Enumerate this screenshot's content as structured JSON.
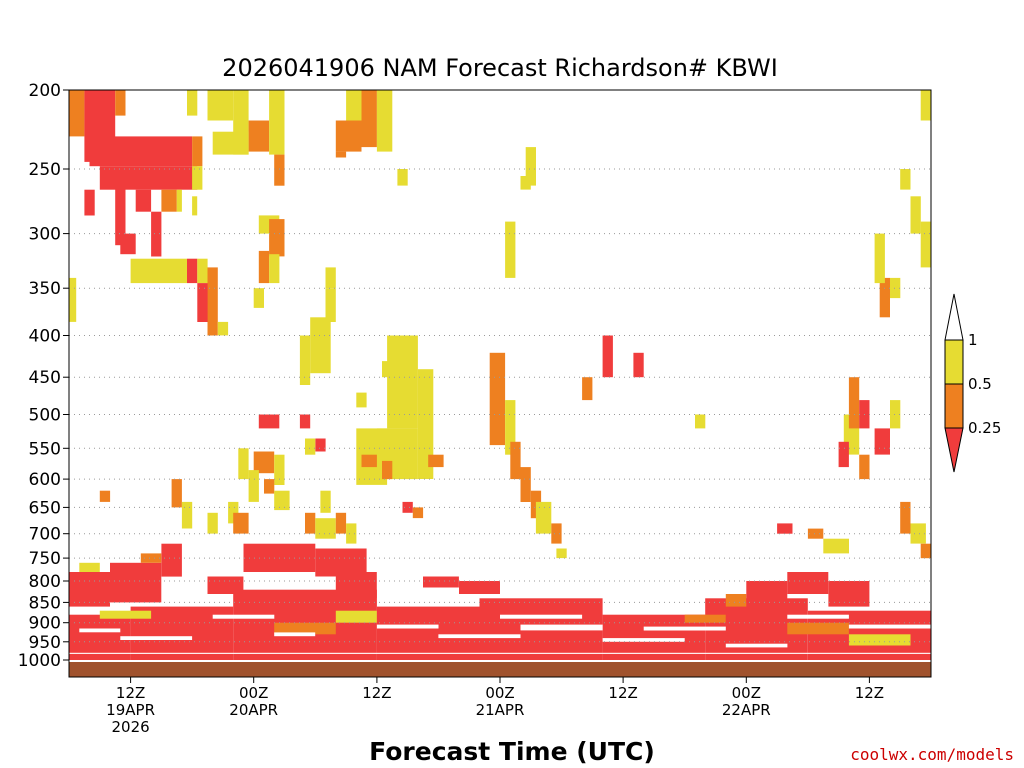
{
  "chart_data": {
    "type": "heatmap",
    "title": "2026041906 NAM Forecast Richardson# KBWI",
    "xlabel": "Forecast Time (UTC)",
    "credit": "coolwx.com/models",
    "y_scale": "log",
    "y_reversed": true,
    "ylim": [
      1000,
      200
    ],
    "grid": "horizontal dotted",
    "y_ticks": [
      {
        "value": 200,
        "label": "200"
      },
      {
        "value": 250,
        "label": "250"
      },
      {
        "value": 300,
        "label": "300"
      },
      {
        "value": 350,
        "label": "350"
      },
      {
        "value": 400,
        "label": "400"
      },
      {
        "value": 450,
        "label": "450"
      },
      {
        "value": 500,
        "label": "500"
      },
      {
        "value": 550,
        "label": "550"
      },
      {
        "value": 600,
        "label": "600"
      },
      {
        "value": 650,
        "label": "650"
      },
      {
        "value": 700,
        "label": "700"
      },
      {
        "value": 750,
        "label": "750"
      },
      {
        "value": 800,
        "label": "800"
      },
      {
        "value": 850,
        "label": "850"
      },
      {
        "value": 900,
        "label": "900"
      },
      {
        "value": 950,
        "label": "950"
      },
      {
        "value": 1000,
        "label": "1000"
      }
    ],
    "xlim": [
      0,
      84
    ],
    "x_ticks": [
      {
        "value": 6,
        "lines": [
          "12Z",
          "19APR",
          "2026"
        ]
      },
      {
        "value": 18,
        "lines": [
          "00Z",
          "20APR"
        ]
      },
      {
        "value": 30,
        "lines": [
          "12Z"
        ]
      },
      {
        "value": 42,
        "lines": [
          "00Z",
          "21APR"
        ]
      },
      {
        "value": 54,
        "lines": [
          "12Z"
        ]
      },
      {
        "value": 66,
        "lines": [
          "00Z",
          "22APR"
        ]
      },
      {
        "value": 78,
        "lines": [
          "12Z"
        ]
      }
    ],
    "colorbar": {
      "bins": [
        {
          "label": "< 0.25",
          "color": "#f03c3c"
        },
        {
          "label": "0.25 - 0.5",
          "color": "#ee8020"
        },
        {
          "label": "0.5 - 1",
          "color": "#e6dc32"
        },
        {
          "label": "> 1",
          "color": "#ffffff"
        }
      ],
      "tick_labels": [
        "1",
        "0.5",
        "0.25"
      ]
    },
    "ground_color": "#a0522d",
    "cells": [
      {
        "t0": 0,
        "t1": 1.5,
        "p0": 200,
        "p1": 228,
        "v": "orange"
      },
      {
        "t0": 1.5,
        "t1": 4.5,
        "p0": 200,
        "p1": 245,
        "v": "red"
      },
      {
        "t0": 4.5,
        "t1": 5.5,
        "p0": 200,
        "p1": 215,
        "v": "orange"
      },
      {
        "t0": 2,
        "t1": 12,
        "p0": 228,
        "p1": 248,
        "v": "red"
      },
      {
        "t0": 3,
        "t1": 12.5,
        "p0": 248,
        "p1": 265,
        "v": "red"
      },
      {
        "t0": 12,
        "t1": 13,
        "p0": 228,
        "p1": 248,
        "v": "orange"
      },
      {
        "t0": 12,
        "t1": 13,
        "p0": 248,
        "p1": 265,
        "v": "yellow"
      },
      {
        "t0": 11.5,
        "t1": 12.5,
        "p0": 200,
        "p1": 215,
        "v": "yellow"
      },
      {
        "t0": 13.5,
        "t1": 16,
        "p0": 200,
        "p1": 218,
        "v": "yellow"
      },
      {
        "t0": 16,
        "t1": 17.5,
        "p0": 200,
        "p1": 240,
        "v": "yellow"
      },
      {
        "t0": 17.5,
        "t1": 19.5,
        "p0": 218,
        "p1": 238,
        "v": "orange"
      },
      {
        "t0": 19.5,
        "t1": 21,
        "p0": 200,
        "p1": 240,
        "v": "yellow"
      },
      {
        "t0": 14,
        "t1": 17.5,
        "p0": 225,
        "p1": 240,
        "v": "yellow"
      },
      {
        "t0": 20,
        "t1": 21,
        "p0": 240,
        "p1": 262,
        "v": "orange"
      },
      {
        "t0": 1.5,
        "t1": 2.5,
        "p0": 265,
        "p1": 285,
        "v": "red"
      },
      {
        "t0": 4.5,
        "t1": 5.5,
        "p0": 262,
        "p1": 310,
        "v": "red"
      },
      {
        "t0": 5,
        "t1": 6.5,
        "p0": 300,
        "p1": 318,
        "v": "red"
      },
      {
        "t0": 6.5,
        "t1": 8,
        "p0": 265,
        "p1": 282,
        "v": "red"
      },
      {
        "t0": 8,
        "t1": 9,
        "p0": 282,
        "p1": 320,
        "v": "red"
      },
      {
        "t0": 9,
        "t1": 10.5,
        "p0": 265,
        "p1": 282,
        "v": "orange"
      },
      {
        "t0": 10.5,
        "t1": 11,
        "p0": 265,
        "p1": 282,
        "v": "yellow"
      },
      {
        "t0": 12,
        "t1": 12.5,
        "p0": 270,
        "p1": 285,
        "v": "yellow"
      },
      {
        "t0": 18.5,
        "t1": 20.5,
        "p0": 285,
        "p1": 300,
        "v": "yellow"
      },
      {
        "t0": 19.5,
        "t1": 21,
        "p0": 288,
        "p1": 320,
        "v": "orange"
      },
      {
        "t0": 18.5,
        "t1": 19.5,
        "p0": 315,
        "p1": 345,
        "v": "orange"
      },
      {
        "t0": 19.5,
        "t1": 20.5,
        "p0": 318,
        "p1": 345,
        "v": "yellow"
      },
      {
        "t0": 6,
        "t1": 11.5,
        "p0": 322,
        "p1": 345,
        "v": "yellow"
      },
      {
        "t0": 11.5,
        "t1": 12.5,
        "p0": 322,
        "p1": 345,
        "v": "red"
      },
      {
        "t0": 12.5,
        "t1": 13.5,
        "p0": 322,
        "p1": 345,
        "v": "yellow"
      },
      {
        "t0": 13.5,
        "t1": 14.5,
        "p0": 330,
        "p1": 400,
        "v": "orange"
      },
      {
        "t0": 12.5,
        "t1": 13.5,
        "p0": 345,
        "p1": 385,
        "v": "red"
      },
      {
        "t0": 18,
        "t1": 19,
        "p0": 350,
        "p1": 370,
        "v": "yellow"
      },
      {
        "t0": 14.5,
        "t1": 15.5,
        "p0": 385,
        "p1": 400,
        "v": "yellow"
      },
      {
        "t0": 0,
        "t1": 0.7,
        "p0": 340,
        "p1": 385,
        "v": "yellow"
      },
      {
        "t0": 27,
        "t1": 28.5,
        "p0": 200,
        "p1": 218,
        "v": "yellow"
      },
      {
        "t0": 28.5,
        "t1": 30,
        "p0": 200,
        "p1": 235,
        "v": "orange"
      },
      {
        "t0": 30,
        "t1": 31.5,
        "p0": 200,
        "p1": 238,
        "v": "yellow"
      },
      {
        "t0": 26,
        "t1": 28.5,
        "p0": 218,
        "p1": 238,
        "v": "orange"
      },
      {
        "t0": 26,
        "t1": 27,
        "p0": 238,
        "p1": 242,
        "v": "orange"
      },
      {
        "t0": 32,
        "t1": 33,
        "p0": 250,
        "p1": 262,
        "v": "yellow"
      },
      {
        "t0": 25,
        "t1": 26,
        "p0": 330,
        "p1": 350,
        "v": "yellow"
      },
      {
        "t0": 23.5,
        "t1": 25.5,
        "p0": 380,
        "p1": 445,
        "v": "yellow"
      },
      {
        "t0": 22.5,
        "t1": 23.5,
        "p0": 400,
        "p1": 460,
        "v": "yellow"
      },
      {
        "t0": 25,
        "t1": 26,
        "p0": 350,
        "p1": 385,
        "v": "yellow"
      },
      {
        "t0": 31,
        "t1": 34,
        "p0": 400,
        "p1": 520,
        "v": "yellow"
      },
      {
        "t0": 34,
        "t1": 35.5,
        "p0": 440,
        "p1": 600,
        "v": "yellow"
      },
      {
        "t0": 28,
        "t1": 31,
        "p0": 520,
        "p1": 610,
        "v": "yellow"
      },
      {
        "t0": 30,
        "t1": 34,
        "p0": 520,
        "p1": 600,
        "v": "yellow"
      },
      {
        "t0": 28.5,
        "t1": 30,
        "p0": 560,
        "p1": 580,
        "v": "orange"
      },
      {
        "t0": 30.5,
        "t1": 31.5,
        "p0": 570,
        "p1": 600,
        "v": "orange"
      },
      {
        "t0": 35,
        "t1": 36.5,
        "p0": 560,
        "p1": 580,
        "v": "orange"
      },
      {
        "t0": 32.5,
        "t1": 33.5,
        "p0": 640,
        "p1": 660,
        "v": "red"
      },
      {
        "t0": 33.5,
        "t1": 34.5,
        "p0": 650,
        "p1": 670,
        "v": "orange"
      },
      {
        "t0": 28,
        "t1": 29,
        "p0": 470,
        "p1": 490,
        "v": "yellow"
      },
      {
        "t0": 30.5,
        "t1": 31.5,
        "p0": 430,
        "p1": 450,
        "v": "yellow"
      },
      {
        "t0": 18.5,
        "t1": 20.5,
        "p0": 500,
        "p1": 520,
        "v": "red"
      },
      {
        "t0": 22.5,
        "t1": 23.5,
        "p0": 500,
        "p1": 520,
        "v": "red"
      },
      {
        "t0": 24,
        "t1": 25,
        "p0": 535,
        "p1": 555,
        "v": "red"
      },
      {
        "t0": 23,
        "t1": 24,
        "p0": 535,
        "p1": 560,
        "v": "yellow"
      },
      {
        "t0": 18,
        "t1": 20,
        "p0": 555,
        "p1": 590,
        "v": "orange"
      },
      {
        "t0": 20,
        "t1": 21,
        "p0": 560,
        "p1": 610,
        "v": "yellow"
      },
      {
        "t0": 16.5,
        "t1": 17.5,
        "p0": 550,
        "p1": 600,
        "v": "yellow"
      },
      {
        "t0": 17.5,
        "t1": 18.5,
        "p0": 585,
        "p1": 640,
        "v": "yellow"
      },
      {
        "t0": 19,
        "t1": 20,
        "p0": 600,
        "p1": 625,
        "v": "orange"
      },
      {
        "t0": 15.5,
        "t1": 16.5,
        "p0": 640,
        "p1": 680,
        "v": "yellow"
      },
      {
        "t0": 16,
        "t1": 17.5,
        "p0": 660,
        "p1": 700,
        "v": "orange"
      },
      {
        "t0": 13.5,
        "t1": 14.5,
        "p0": 660,
        "p1": 700,
        "v": "yellow"
      },
      {
        "t0": 20,
        "t1": 21.5,
        "p0": 620,
        "p1": 655,
        "v": "yellow"
      },
      {
        "t0": 24.5,
        "t1": 25.5,
        "p0": 620,
        "p1": 660,
        "v": "yellow"
      },
      {
        "t0": 23,
        "t1": 24,
        "p0": 660,
        "p1": 700,
        "v": "orange"
      },
      {
        "t0": 24,
        "t1": 26,
        "p0": 670,
        "p1": 710,
        "v": "yellow"
      },
      {
        "t0": 26,
        "t1": 27,
        "p0": 660,
        "p1": 700,
        "v": "orange"
      },
      {
        "t0": 27,
        "t1": 28,
        "p0": 680,
        "p1": 720,
        "v": "yellow"
      },
      {
        "t0": 10,
        "t1": 11,
        "p0": 600,
        "p1": 650,
        "v": "orange"
      },
      {
        "t0": 11,
        "t1": 12,
        "p0": 640,
        "p1": 690,
        "v": "yellow"
      },
      {
        "t0": 3,
        "t1": 4,
        "p0": 620,
        "p1": 640,
        "v": "orange"
      },
      {
        "t0": 41,
        "t1": 42.5,
        "p0": 420,
        "p1": 545,
        "v": "orange"
      },
      {
        "t0": 42.5,
        "t1": 43.5,
        "p0": 480,
        "p1": 560,
        "v": "yellow"
      },
      {
        "t0": 43,
        "t1": 44,
        "p0": 540,
        "p1": 600,
        "v": "orange"
      },
      {
        "t0": 44,
        "t1": 45,
        "p0": 580,
        "p1": 640,
        "v": "orange"
      },
      {
        "t0": 45,
        "t1": 46,
        "p0": 620,
        "p1": 670,
        "v": "orange"
      },
      {
        "t0": 45.5,
        "t1": 47,
        "p0": 640,
        "p1": 700,
        "v": "yellow"
      },
      {
        "t0": 47,
        "t1": 48,
        "p0": 680,
        "p1": 720,
        "v": "orange"
      },
      {
        "t0": 47.5,
        "t1": 48.5,
        "p0": 730,
        "p1": 750,
        "v": "yellow"
      },
      {
        "t0": 52,
        "t1": 53,
        "p0": 400,
        "p1": 450,
        "v": "red"
      },
      {
        "t0": 50,
        "t1": 51,
        "p0": 450,
        "p1": 480,
        "v": "orange"
      },
      {
        "t0": 55,
        "t1": 56,
        "p0": 420,
        "p1": 450,
        "v": "red"
      },
      {
        "t0": 61,
        "t1": 62,
        "p0": 500,
        "p1": 520,
        "v": "yellow"
      },
      {
        "t0": 44.5,
        "t1": 45.5,
        "p0": 235,
        "p1": 262,
        "v": "yellow"
      },
      {
        "t0": 44,
        "t1": 45,
        "p0": 255,
        "p1": 265,
        "v": "yellow"
      },
      {
        "t0": 42.5,
        "t1": 43.5,
        "p0": 290,
        "p1": 340,
        "v": "yellow"
      },
      {
        "t0": 69,
        "t1": 70.5,
        "p0": 680,
        "p1": 700,
        "v": "red"
      },
      {
        "t0": 72,
        "t1": 73.5,
        "p0": 690,
        "p1": 710,
        "v": "orange"
      },
      {
        "t0": 73.5,
        "t1": 76,
        "p0": 710,
        "p1": 740,
        "v": "yellow"
      },
      {
        "t0": 75.5,
        "t1": 77,
        "p0": 500,
        "p1": 560,
        "v": "yellow"
      },
      {
        "t0": 76,
        "t1": 77,
        "p0": 450,
        "p1": 520,
        "v": "orange"
      },
      {
        "t0": 75,
        "t1": 76,
        "p0": 540,
        "p1": 580,
        "v": "red"
      },
      {
        "t0": 77,
        "t1": 78,
        "p0": 480,
        "p1": 520,
        "v": "red"
      },
      {
        "t0": 78.5,
        "t1": 80,
        "p0": 520,
        "p1": 560,
        "v": "red"
      },
      {
        "t0": 77,
        "t1": 78,
        "p0": 560,
        "p1": 600,
        "v": "orange"
      },
      {
        "t0": 80,
        "t1": 81,
        "p0": 480,
        "p1": 520,
        "v": "yellow"
      },
      {
        "t0": 79,
        "t1": 80,
        "p0": 340,
        "p1": 380,
        "v": "orange"
      },
      {
        "t0": 78.5,
        "t1": 79.5,
        "p0": 300,
        "p1": 345,
        "v": "yellow"
      },
      {
        "t0": 80,
        "t1": 81,
        "p0": 340,
        "p1": 360,
        "v": "yellow"
      },
      {
        "t0": 81,
        "t1": 82,
        "p0": 250,
        "p1": 265,
        "v": "yellow"
      },
      {
        "t0": 82,
        "t1": 83,
        "p0": 270,
        "p1": 300,
        "v": "yellow"
      },
      {
        "t0": 83,
        "t1": 84,
        "p0": 200,
        "p1": 218,
        "v": "yellow"
      },
      {
        "t0": 83,
        "t1": 84,
        "p0": 290,
        "p1": 330,
        "v": "yellow"
      },
      {
        "t0": 81,
        "t1": 82,
        "p0": 640,
        "p1": 700,
        "v": "orange"
      },
      {
        "t0": 82,
        "t1": 83.5,
        "p0": 680,
        "p1": 720,
        "v": "yellow"
      },
      {
        "t0": 83,
        "t1": 84,
        "p0": 720,
        "p1": 750,
        "v": "orange"
      },
      {
        "t0": 0,
        "t1": 4,
        "p0": 780,
        "p1": 860,
        "v": "red"
      },
      {
        "t0": 4,
        "t1": 9,
        "p0": 760,
        "p1": 850,
        "v": "red"
      },
      {
        "t0": 9,
        "t1": 11,
        "p0": 720,
        "p1": 790,
        "v": "red"
      },
      {
        "t0": 1,
        "t1": 3,
        "p0": 760,
        "p1": 780,
        "v": "yellow"
      },
      {
        "t0": 7,
        "t1": 9,
        "p0": 740,
        "p1": 760,
        "v": "orange"
      },
      {
        "t0": 13.5,
        "t1": 17,
        "p0": 790,
        "p1": 830,
        "v": "red"
      },
      {
        "t0": 17,
        "t1": 24,
        "p0": 720,
        "p1": 780,
        "v": "red"
      },
      {
        "t0": 24,
        "t1": 29,
        "p0": 730,
        "p1": 790,
        "v": "red"
      },
      {
        "t0": 26,
        "t1": 30,
        "p0": 780,
        "p1": 840,
        "v": "red"
      },
      {
        "t0": 0,
        "t1": 6,
        "p0": 880,
        "p1": 1000,
        "v": "red"
      },
      {
        "t0": 6,
        "t1": 16,
        "p0": 860,
        "p1": 1000,
        "v": "red"
      },
      {
        "t0": 16,
        "t1": 30,
        "p0": 820,
        "p1": 1000,
        "v": "red"
      },
      {
        "t0": 30,
        "t1": 40,
        "p0": 860,
        "p1": 1000,
        "v": "red"
      },
      {
        "t0": 40,
        "t1": 52,
        "p0": 840,
        "p1": 1000,
        "v": "red"
      },
      {
        "t0": 52,
        "t1": 62,
        "p0": 880,
        "p1": 1000,
        "v": "red"
      },
      {
        "t0": 62,
        "t1": 72,
        "p0": 840,
        "p1": 1000,
        "v": "red"
      },
      {
        "t0": 72,
        "t1": 84,
        "p0": 870,
        "p1": 1000,
        "v": "red"
      },
      {
        "t0": 34.5,
        "t1": 38,
        "p0": 790,
        "p1": 815,
        "v": "red"
      },
      {
        "t0": 38,
        "t1": 42,
        "p0": 800,
        "p1": 830,
        "v": "red"
      },
      {
        "t0": 64,
        "t1": 66,
        "p0": 830,
        "p1": 860,
        "v": "orange"
      },
      {
        "t0": 66,
        "t1": 70,
        "p0": 800,
        "p1": 850,
        "v": "red"
      },
      {
        "t0": 70,
        "t1": 74,
        "p0": 780,
        "p1": 830,
        "v": "red"
      },
      {
        "t0": 74,
        "t1": 78,
        "p0": 800,
        "p1": 860,
        "v": "red"
      },
      {
        "t0": 3,
        "t1": 8,
        "p0": 870,
        "p1": 890,
        "v": "yellow"
      },
      {
        "t0": 20,
        "t1": 26,
        "p0": 900,
        "p1": 930,
        "v": "orange"
      },
      {
        "t0": 26,
        "t1": 30,
        "p0": 870,
        "p1": 900,
        "v": "yellow"
      },
      {
        "t0": 60,
        "t1": 64,
        "p0": 880,
        "p1": 900,
        "v": "orange"
      },
      {
        "t0": 70,
        "t1": 76,
        "p0": 900,
        "p1": 930,
        "v": "orange"
      },
      {
        "t0": 76,
        "t1": 82,
        "p0": 930,
        "p1": 960,
        "v": "yellow"
      }
    ],
    "gaps": [
      {
        "t0": 1,
        "t1": 5,
        "p0": 915,
        "p1": 925
      },
      {
        "t0": 5,
        "t1": 12,
        "p0": 935,
        "p1": 945
      },
      {
        "t0": 14,
        "t1": 20,
        "p0": 880,
        "p1": 890
      },
      {
        "t0": 20,
        "t1": 24,
        "p0": 925,
        "p1": 935
      },
      {
        "t0": 30,
        "t1": 36,
        "p0": 905,
        "p1": 915
      },
      {
        "t0": 36,
        "t1": 44,
        "p0": 930,
        "p1": 940
      },
      {
        "t0": 42,
        "t1": 50,
        "p0": 880,
        "p1": 890
      },
      {
        "t0": 44,
        "t1": 52,
        "p0": 905,
        "p1": 920
      },
      {
        "t0": 52,
        "t1": 60,
        "p0": 940,
        "p1": 950
      },
      {
        "t0": 56,
        "t1": 64,
        "p0": 910,
        "p1": 920
      },
      {
        "t0": 64,
        "t1": 70,
        "p0": 955,
        "p1": 965
      },
      {
        "t0": 70,
        "t1": 76,
        "p0": 880,
        "p1": 890
      },
      {
        "t0": 76,
        "t1": 84,
        "p0": 905,
        "p1": 915
      },
      {
        "t0": 0,
        "t1": 84,
        "p0": 980,
        "p1": 983
      }
    ]
  }
}
